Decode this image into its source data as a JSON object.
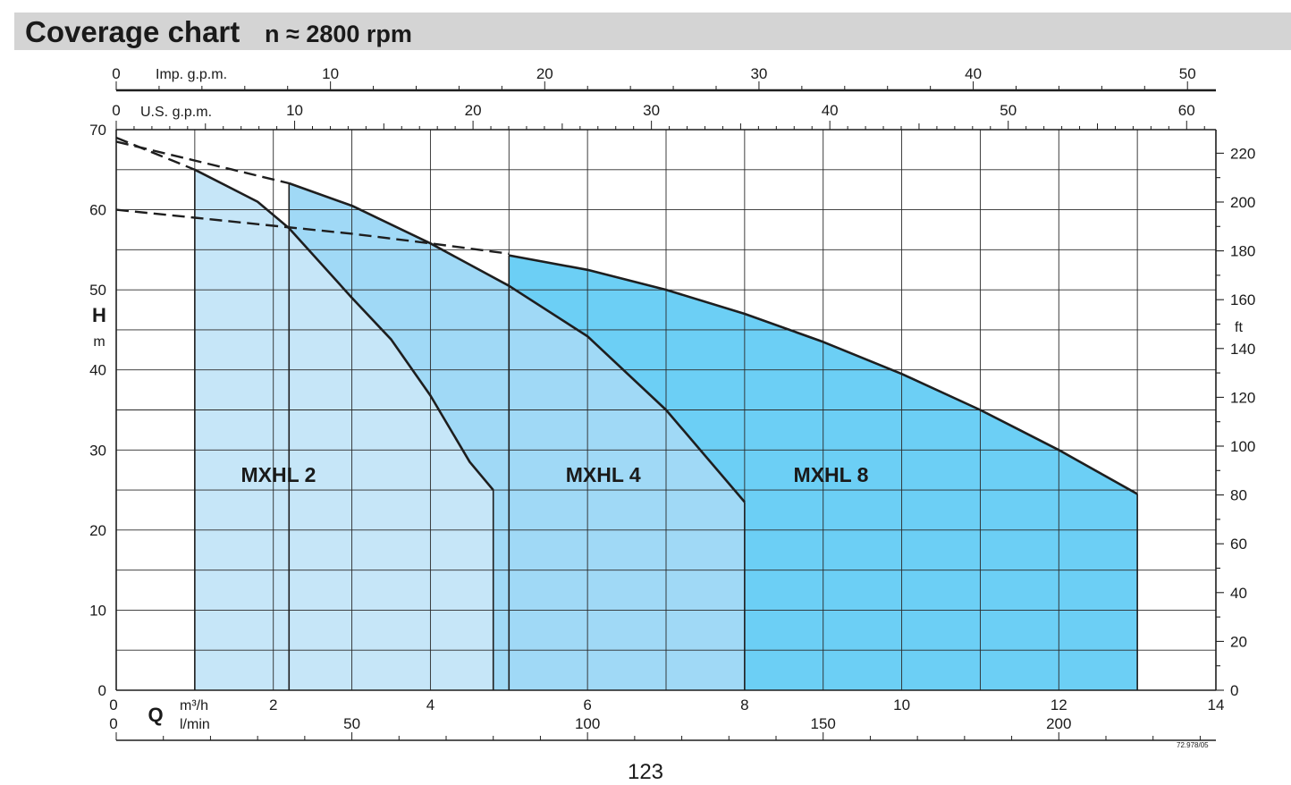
{
  "header": {
    "title": "Coverage chart",
    "subtitle": "n ≈ 2800 rpm"
  },
  "footer": {
    "page_number": "123",
    "ref_code": "72.978/05"
  },
  "chart_data": {
    "type": "area",
    "colors": {
      "MXHL 2": "#c6e6f8",
      "MXHL 4": "#a0d9f6",
      "MXHL 8": "#6ccff5",
      "grid": "#2a2a2a",
      "curve": "#1e1e1e"
    },
    "grid": true,
    "x_axis": {
      "unit": "m³/h",
      "label": "Q",
      "range": [
        0,
        14
      ],
      "ticks": [
        0,
        2,
        4,
        6,
        8,
        10,
        12,
        14
      ]
    },
    "x_axis_lmin": {
      "unit": "l/min",
      "ticks": [
        0,
        50,
        100,
        150,
        200
      ]
    },
    "x_axis_us_gpm": {
      "unit": "U.S. g.p.m.",
      "ticks": [
        0,
        10,
        20,
        30,
        40,
        50,
        60
      ]
    },
    "x_axis_imp_gpm": {
      "unit": "Imp. g.p.m.",
      "ticks": [
        0,
        10,
        20,
        30,
        40,
        50
      ]
    },
    "y_axis": {
      "label": "H",
      "unit": "m",
      "range": [
        0,
        70
      ],
      "ticks": [
        0,
        10,
        20,
        30,
        40,
        50,
        60,
        70
      ]
    },
    "y_axis_right": {
      "unit": "ft",
      "ticks": [
        0,
        20,
        40,
        60,
        80,
        100,
        120,
        140,
        160,
        180,
        200,
        220
      ]
    },
    "series": [
      {
        "name": "MXHL 2",
        "q_range": [
          1.0,
          4.8
        ],
        "outline": [
          [
            1.0,
            65.0
          ],
          [
            1.8,
            61.0
          ],
          [
            2.2,
            57.7
          ],
          [
            3.0,
            49.0
          ],
          [
            3.5,
            43.8
          ],
          [
            4.0,
            36.8
          ],
          [
            4.5,
            28.5
          ],
          [
            4.8,
            25.0
          ]
        ],
        "extension": [
          [
            0,
            69.0
          ],
          [
            1.0,
            65.0
          ]
        ]
      },
      {
        "name": "MXHL 4",
        "q_range": [
          2.2,
          8.0
        ],
        "outline": [
          [
            2.2,
            63.3
          ],
          [
            3.0,
            60.5
          ],
          [
            4.0,
            55.8
          ],
          [
            5.0,
            50.5
          ],
          [
            6.0,
            44.2
          ],
          [
            7.0,
            35.0
          ],
          [
            8.0,
            23.5
          ]
        ],
        "extension": [
          [
            0,
            68.5
          ],
          [
            2.2,
            63.3
          ]
        ],
        "lower_bound": [
          [
            0,
            60.0
          ],
          [
            1.0,
            59.0
          ],
          [
            2.0,
            58.0
          ],
          [
            3.0,
            57.0
          ],
          [
            4.0,
            55.8
          ],
          [
            5.0,
            54.5
          ]
        ]
      },
      {
        "name": "MXHL 8",
        "q_range": [
          5.0,
          13.0
        ],
        "outline": [
          [
            5.0,
            54.3
          ],
          [
            6.0,
            52.5
          ],
          [
            7.0,
            50.0
          ],
          [
            8.0,
            47.0
          ],
          [
            9.0,
            43.5
          ],
          [
            10.0,
            39.5
          ],
          [
            11.0,
            35.0
          ],
          [
            12.0,
            30.0
          ],
          [
            13.0,
            24.5
          ]
        ]
      }
    ]
  }
}
